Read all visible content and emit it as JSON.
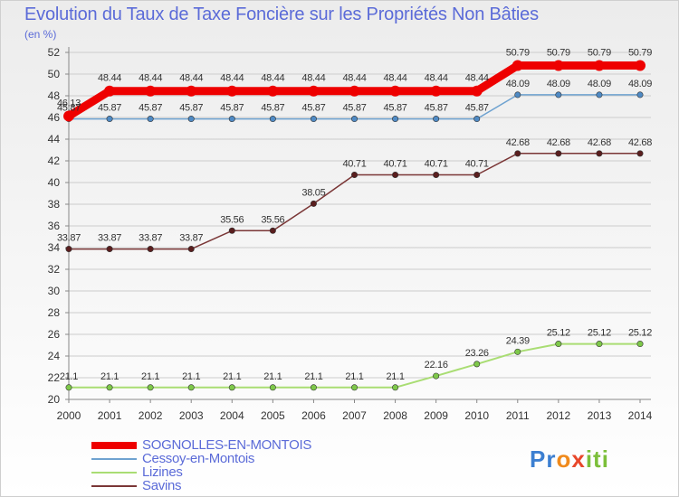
{
  "header": {
    "title": "Evolution du Taux de Taxe Foncière sur les Propriétés Non Bâties",
    "unit": "(en %)"
  },
  "logo": {
    "text": "Proxiti"
  },
  "colors": {
    "title": "#5b6bd8",
    "grid": "#cccccc",
    "series": [
      "#ee0000",
      "#6ea2d0",
      "#a9dd73",
      "#7a3636"
    ],
    "markers": [
      "#ee0000",
      "#4f8ac4",
      "#7ec84a",
      "#5a1e1e"
    ]
  },
  "chart_data": {
    "type": "line",
    "title": "Evolution du Taux de Taxe Foncière sur les Propriétés Non Bâties",
    "ylabel": "(en %)",
    "xlabel": "",
    "x": [
      "2000",
      "2001",
      "2002",
      "2003",
      "2004",
      "2005",
      "2006",
      "2007",
      "2008",
      "2009",
      "2010",
      "2011",
      "2012",
      "2013",
      "2014"
    ],
    "ylim": [
      20,
      52
    ],
    "yticks": [
      20,
      22,
      24,
      26,
      28,
      30,
      32,
      34,
      36,
      38,
      40,
      42,
      44,
      46,
      48,
      50,
      52
    ],
    "grid": "horizontal",
    "legend_position": "bottom-left",
    "series": [
      {
        "name": "SOGNOLLES-EN-MONTOIS",
        "values": [
          46.13,
          48.44,
          48.44,
          48.44,
          48.44,
          48.44,
          48.44,
          48.44,
          48.44,
          48.44,
          48.44,
          50.79,
          50.79,
          50.79,
          50.79
        ],
        "labels": [
          "46.13",
          "48.44",
          "48.44",
          "48.44",
          "48.44",
          "48.44",
          "48.44",
          "48.44",
          "48.44",
          "48.44",
          "48.44",
          "50.79",
          "50.79",
          "50.79",
          "50.79"
        ]
      },
      {
        "name": "Cessoy-en-Montois",
        "values": [
          45.87,
          45.87,
          45.87,
          45.87,
          45.87,
          45.87,
          45.87,
          45.87,
          45.87,
          45.87,
          45.87,
          48.09,
          48.09,
          48.09,
          48.09
        ],
        "labels": [
          "45.87",
          "45.87",
          "45.87",
          "45.87",
          "45.87",
          "45.87",
          "45.87",
          "45.87",
          "45.87",
          "45.87",
          "45.87",
          "48.09",
          "48.09",
          "48.09",
          "48.09"
        ]
      },
      {
        "name": "Lizines",
        "values": [
          21.1,
          21.1,
          21.1,
          21.1,
          21.1,
          21.1,
          21.1,
          21.1,
          21.1,
          22.16,
          23.26,
          24.39,
          25.12,
          25.12,
          25.12
        ],
        "labels": [
          "21.1",
          "21.1",
          "21.1",
          "21.1",
          "21.1",
          "21.1",
          "21.1",
          "21.1",
          "21.1",
          "22.16",
          "23.26",
          "24.39",
          "25.12",
          "25.12",
          "25.12"
        ]
      },
      {
        "name": "Savins",
        "values": [
          33.87,
          33.87,
          33.87,
          33.87,
          35.56,
          35.56,
          38.05,
          40.71,
          40.71,
          40.71,
          40.71,
          42.68,
          42.68,
          42.68,
          42.68
        ],
        "labels": [
          "33.87",
          "33.87",
          "33.87",
          "33.87",
          "35.56",
          "35.56",
          "38.05",
          "40.71",
          "40.71",
          "40.71",
          "40.71",
          "42.68",
          "42.68",
          "42.68",
          "42.68"
        ]
      }
    ]
  }
}
